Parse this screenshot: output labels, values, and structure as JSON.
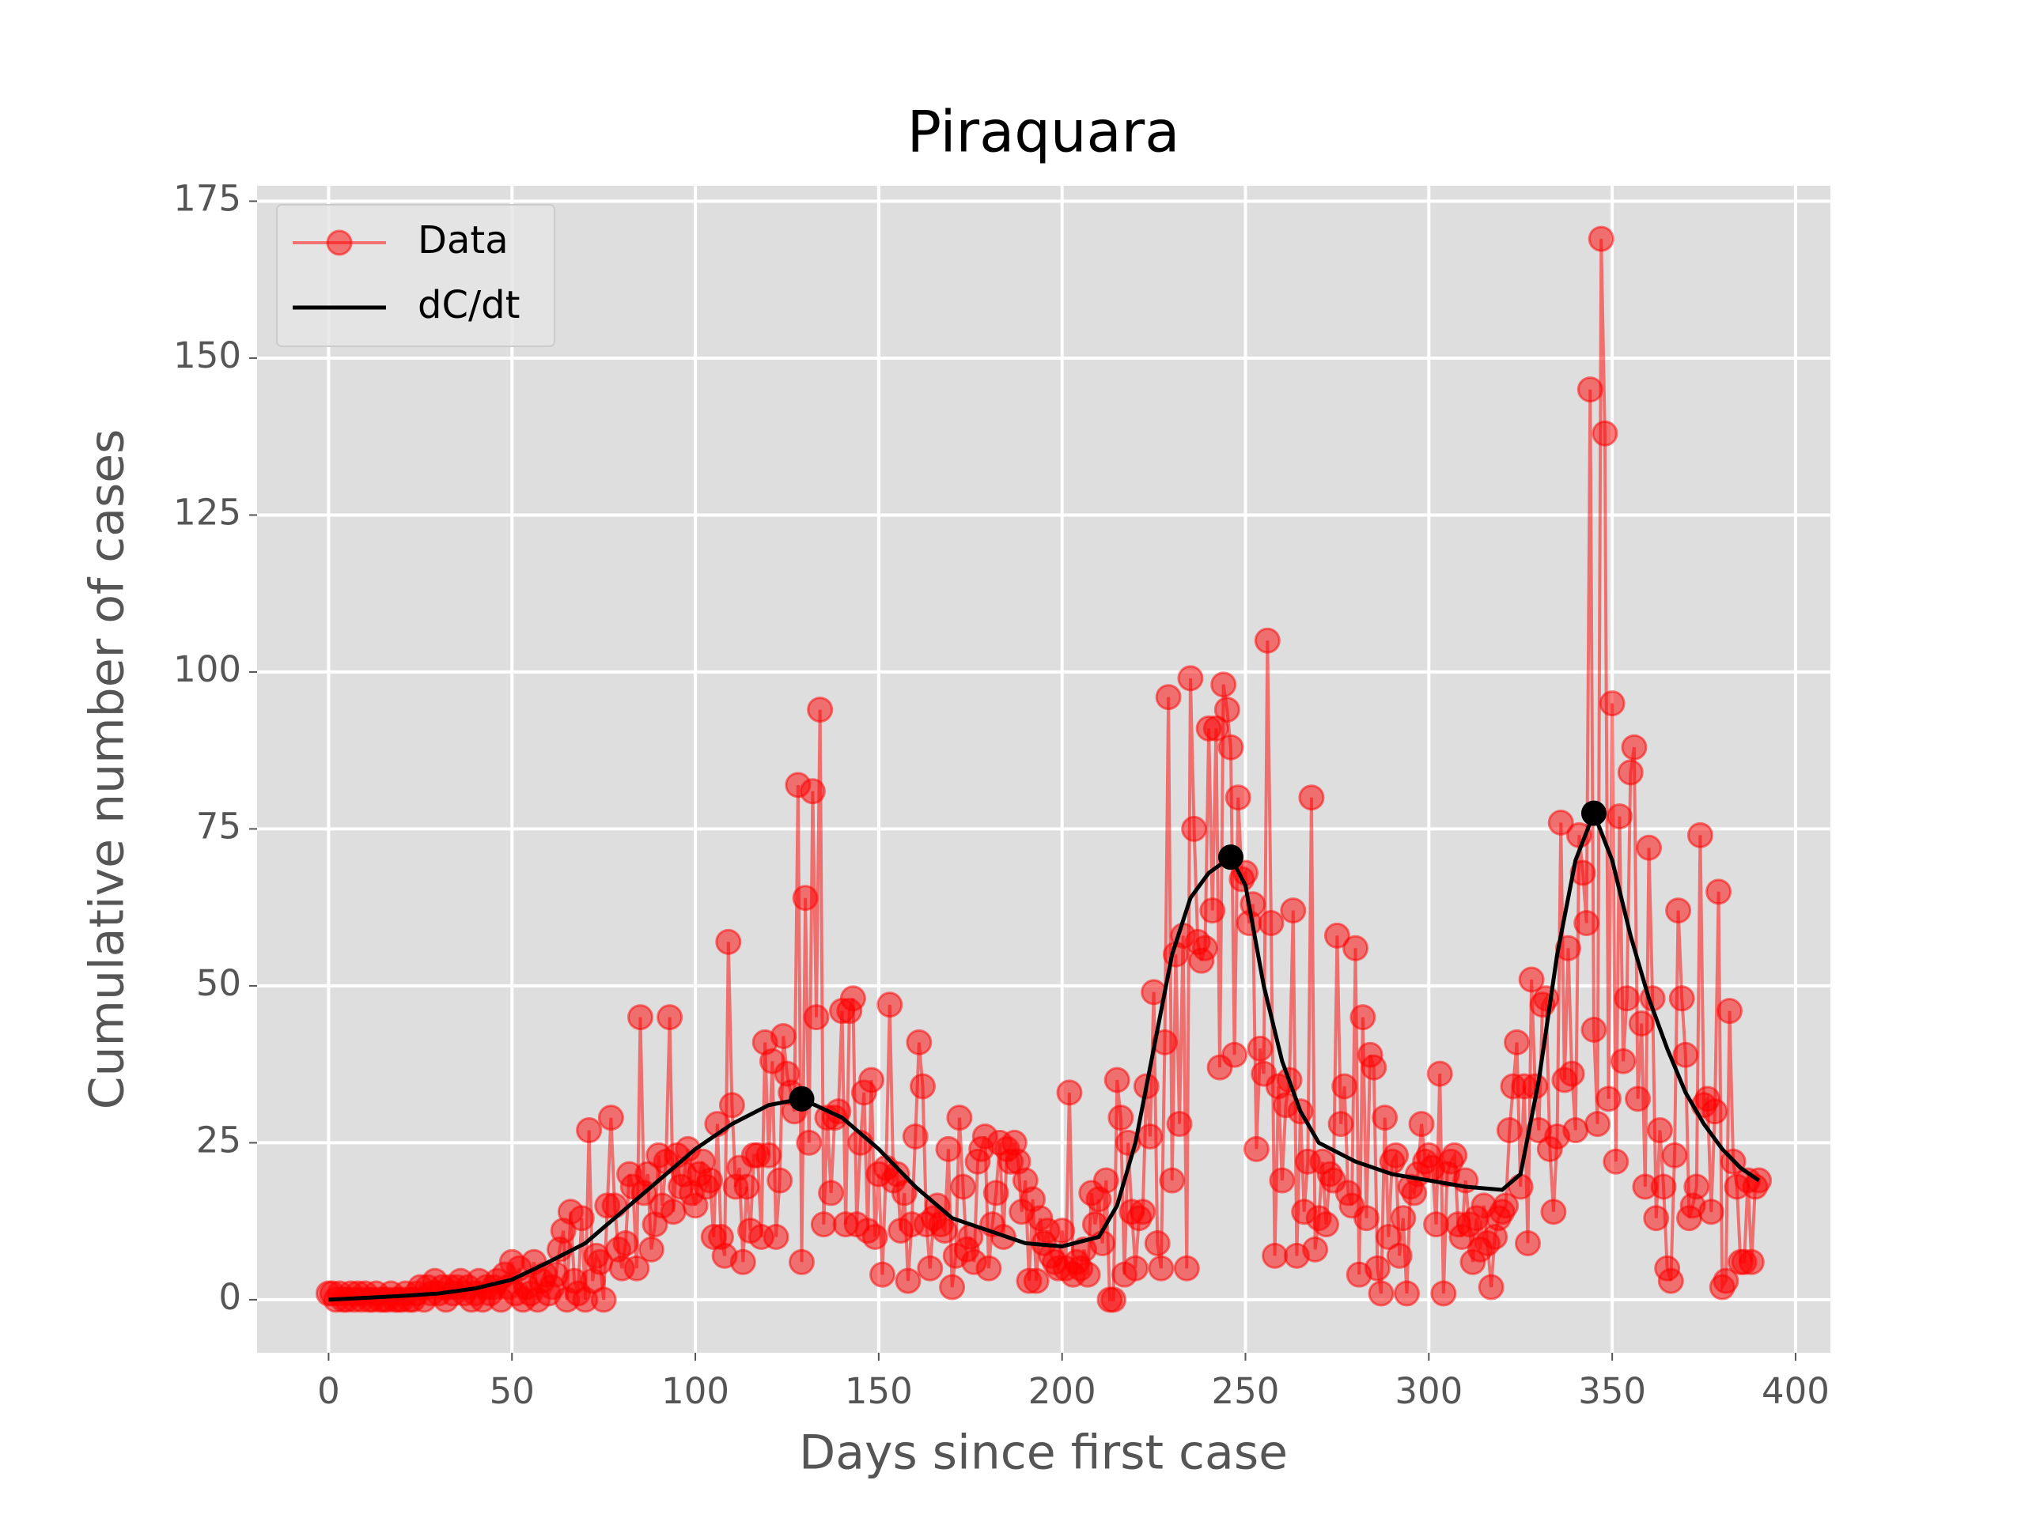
{
  "chart_data": {
    "type": "line",
    "title": "Piraquara",
    "xlabel": "Days since first case",
    "ylabel": "Cumulative number of cases",
    "xlim": [
      -19.5,
      409.5
    ],
    "ylim": [
      -8.45,
      177.45
    ],
    "xticks": [
      0,
      50,
      100,
      150,
      200,
      250,
      300,
      350,
      400
    ],
    "yticks": [
      0,
      25,
      50,
      75,
      100,
      125,
      150,
      175
    ],
    "grid": true,
    "legend": "upper left",
    "series": [
      {
        "name": "Data",
        "color": "red",
        "marker": "o",
        "x": [
          0,
          1,
          2,
          3,
          4,
          5,
          6,
          7,
          8,
          9,
          10,
          11,
          12,
          13,
          14,
          15,
          16,
          17,
          18,
          19,
          20,
          21,
          22,
          23,
          24,
          25,
          26,
          27,
          28,
          29,
          30,
          31,
          32,
          33,
          34,
          35,
          36,
          37,
          38,
          39,
          40,
          41,
          42,
          43,
          44,
          45,
          46,
          47,
          48,
          49,
          50,
          51,
          52,
          53,
          54,
          55,
          56,
          57,
          58,
          59,
          60,
          61,
          62,
          63,
          64,
          65,
          66,
          67,
          68,
          69,
          70,
          71,
          72,
          73,
          74,
          75,
          76,
          77,
          78,
          79,
          80,
          81,
          82,
          83,
          84,
          85,
          86,
          87,
          88,
          89,
          90,
          91,
          92,
          93,
          94,
          95,
          96,
          97,
          98,
          99,
          100,
          101,
          102,
          103,
          104,
          105,
          106,
          107,
          108,
          109,
          110,
          111,
          112,
          113,
          114,
          115,
          116,
          117,
          118,
          119,
          120,
          121,
          122,
          123,
          124,
          125,
          126,
          127,
          128,
          129,
          130,
          131,
          132,
          133,
          134,
          135,
          136,
          137,
          138,
          139,
          140,
          141,
          142,
          143,
          144,
          145,
          146,
          147,
          148,
          149,
          150,
          151,
          152,
          153,
          154,
          155,
          156,
          157,
          158,
          159,
          160,
          161,
          162,
          163,
          164,
          165,
          166,
          167,
          168,
          169,
          170,
          171,
          172,
          173,
          174,
          175,
          176,
          177,
          178,
          179,
          180,
          181,
          182,
          183,
          184,
          185,
          186,
          187,
          188,
          189,
          190,
          191,
          192,
          193,
          194,
          195,
          196,
          197,
          198,
          199,
          200,
          201,
          202,
          203,
          204,
          205,
          206,
          207,
          208,
          209,
          210,
          211,
          212,
          213,
          214,
          215,
          216,
          217,
          218,
          219,
          220,
          221,
          222,
          223,
          224,
          225,
          226,
          227,
          228,
          229,
          230,
          231,
          232,
          233,
          234,
          235,
          236,
          237,
          238,
          239,
          240,
          241,
          242,
          243,
          244,
          245,
          246,
          247,
          248,
          249,
          250,
          251,
          252,
          253,
          254,
          255,
          256,
          257,
          258,
          259,
          260,
          261,
          262,
          263,
          264,
          265,
          266,
          267,
          268,
          269,
          270,
          271,
          272,
          273,
          274,
          275,
          276,
          277,
          278,
          279,
          280,
          281,
          282,
          283,
          284,
          285,
          286,
          287,
          288,
          289,
          290,
          291,
          292,
          293,
          294,
          295,
          296,
          297,
          298,
          299,
          300,
          301,
          302,
          303,
          304,
          305,
          306,
          307,
          308,
          309,
          310,
          311,
          312,
          313,
          314,
          315,
          316,
          317,
          318,
          319,
          320,
          321,
          322,
          323,
          324,
          325,
          326,
          327,
          328,
          329,
          330,
          331,
          332,
          333,
          334,
          335,
          336,
          337,
          338,
          339,
          340,
          341,
          342,
          343,
          344,
          345,
          346,
          347,
          348,
          349,
          350,
          351,
          352,
          353,
          354,
          355,
          356,
          357,
          358,
          359,
          360,
          361,
          362,
          363,
          364,
          365,
          366,
          367,
          368,
          369,
          370,
          371,
          372,
          373,
          374,
          375,
          376,
          377,
          378,
          379,
          380,
          381,
          382,
          383,
          384,
          385,
          386,
          387,
          388,
          389,
          390
        ],
        "values": [
          1,
          1,
          0,
          1,
          0,
          0,
          1,
          0,
          1,
          0,
          1,
          0,
          0,
          1,
          0,
          0,
          0,
          1,
          0,
          0,
          0,
          1,
          0,
          0,
          1,
          2,
          0,
          2,
          1,
          3,
          1,
          2,
          0,
          2,
          1,
          2,
          3,
          1,
          2,
          0,
          1,
          3,
          0,
          2,
          1,
          2,
          3,
          0,
          4,
          2,
          6,
          1,
          5,
          0,
          2,
          1,
          6,
          0,
          3,
          4,
          1,
          2,
          4,
          8,
          11,
          0,
          14,
          3,
          1,
          13,
          0,
          27,
          3,
          7,
          6,
          0,
          15,
          29,
          15,
          8,
          5,
          9,
          20,
          18,
          5,
          45,
          17,
          20,
          8,
          12,
          23,
          15,
          22,
          45,
          14,
          23,
          18,
          20,
          24,
          17,
          15,
          20,
          22,
          18,
          19,
          10,
          28,
          10,
          7,
          57,
          31,
          18,
          21,
          6,
          18,
          11,
          23,
          23,
          10,
          41,
          23,
          38,
          10,
          19,
          42,
          36,
          33,
          30,
          82,
          6,
          64,
          25,
          81,
          45,
          94,
          12,
          29,
          17,
          29,
          30,
          46,
          12,
          46,
          48,
          12,
          25,
          33,
          11,
          35,
          10,
          20,
          4,
          21,
          47,
          19,
          20,
          11,
          17,
          3,
          12,
          26,
          41,
          34,
          12,
          5,
          13,
          15,
          12,
          11,
          24,
          2,
          7,
          29,
          18,
          8,
          10,
          6,
          22,
          24,
          26,
          5,
          12,
          17,
          25,
          10,
          24,
          22,
          25,
          22,
          14,
          19,
          3,
          16,
          3,
          13,
          9,
          11,
          7,
          6,
          5,
          11,
          5,
          33,
          4,
          6,
          5,
          8,
          4,
          17,
          12,
          16,
          9,
          19,
          0,
          0,
          35,
          29,
          4,
          25,
          14,
          5,
          13,
          14,
          34,
          26,
          49,
          9,
          5,
          41,
          96,
          19,
          55,
          28,
          58,
          5,
          99,
          75,
          57,
          54,
          56,
          91,
          62,
          91,
          37,
          98,
          94,
          88,
          39,
          80,
          67,
          68,
          60,
          63,
          24,
          40,
          36,
          105,
          60,
          7,
          34,
          19,
          31,
          35,
          62,
          7,
          30,
          14,
          22,
          80,
          8,
          13,
          22,
          12,
          20,
          19,
          58,
          28,
          34,
          17,
          15,
          56,
          4,
          45,
          13,
          39,
          37,
          5,
          1,
          29,
          10,
          22,
          23,
          7,
          13,
          1,
          18,
          17,
          20,
          28,
          22,
          23,
          21,
          12,
          36,
          1,
          20,
          22,
          23,
          12,
          10,
          19,
          12,
          6,
          13,
          8,
          15,
          9,
          2,
          10,
          13,
          14,
          15,
          27,
          34,
          41,
          18,
          34,
          9,
          51,
          34,
          27,
          47,
          48,
          24,
          14,
          26,
          76,
          35,
          56,
          36,
          27,
          74,
          68,
          60,
          145,
          43,
          28,
          169,
          138,
          32,
          95,
          22,
          77,
          38,
          48,
          84,
          88,
          32,
          44,
          18,
          72,
          48,
          13,
          27,
          18,
          5,
          3,
          23,
          62,
          48,
          39,
          13,
          15,
          18,
          74,
          31,
          32,
          14,
          30,
          65,
          2,
          3,
          46,
          22,
          18,
          6,
          6,
          19,
          6,
          18,
          19
        ]
      },
      {
        "name": "dC/dt",
        "color": "black",
        "x": [
          0,
          10,
          20,
          30,
          40,
          50,
          60,
          70,
          80,
          90,
          100,
          110,
          120,
          129,
          140,
          150,
          160,
          170,
          180,
          190,
          200,
          210,
          215,
          220,
          225,
          230,
          235,
          240,
          246,
          250,
          255,
          260,
          265,
          270,
          280,
          290,
          300,
          310,
          320,
          325,
          330,
          335,
          340,
          345,
          350,
          355,
          360,
          365,
          370,
          375,
          380,
          385,
          390
        ],
        "values": [
          0,
          0.3,
          0.6,
          1,
          1.8,
          3.2,
          6,
          9,
          14,
          19,
          24,
          28,
          31,
          32,
          29,
          24,
          18,
          13,
          11,
          9,
          8.5,
          10,
          15,
          25,
          40,
          55,
          64,
          68,
          70.5,
          66,
          50,
          38,
          30,
          25,
          22,
          20,
          19,
          18,
          17.5,
          20,
          35,
          55,
          70,
          77.5,
          70,
          58,
          48,
          40,
          33,
          28,
          24,
          21,
          19
        ]
      }
    ],
    "peaks": {
      "color": "black",
      "x": [
        129,
        246,
        345
      ],
      "values": [
        32,
        70.5,
        77.5
      ]
    }
  }
}
